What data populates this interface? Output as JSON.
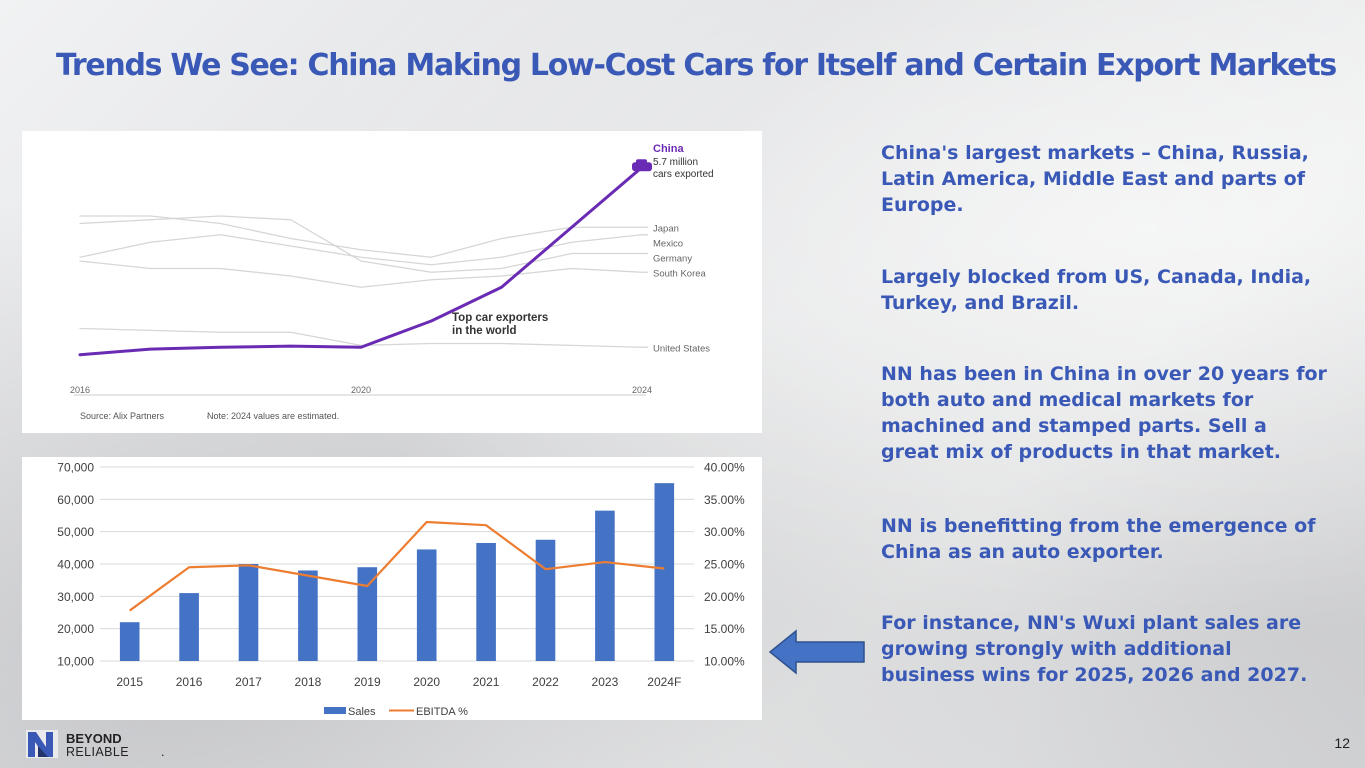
{
  "slide": {
    "title": "Trends We See: China Making Low-Cost Cars for Itself and Certain Export Markets",
    "page_number": "12",
    "logo": {
      "line1": "BEYOND",
      "line2": "RELIABLE",
      "mark": "N"
    },
    "bullets": [
      "China's largest markets – China, Russia, Latin America, Middle East and parts of Europe.",
      "Largely blocked from US, Canada, India, Turkey, and Brazil.",
      "NN has been in China in over 20 years for both auto and medical markets for machined and stamped parts. Sell a great mix of products in that market.",
      "NN is benefitting from the emergence of China as an auto exporter.",
      "For instance, NN's Wuxi plant sales are growing strongly with additional business wins for 2025, 2026 and 2027."
    ]
  },
  "chart_data": [
    {
      "type": "line",
      "title": "",
      "annotation": [
        "Top car exporters",
        "in the world"
      ],
      "highlight_label": {
        "name": "China",
        "value": "5.7 million",
        "unit": "cars exported"
      },
      "source": "Source: Alix Partners",
      "note": "Note: 2024 values are estimated.",
      "x": [
        2016,
        2017,
        2018,
        2019,
        2020,
        2021,
        2022,
        2023,
        2024
      ],
      "x_tick_labels": [
        "2016",
        "2020",
        "2024"
      ],
      "xlim": [
        2016,
        2024
      ],
      "ylim": [
        0,
        6
      ],
      "highlight_color": "#6a2bb4",
      "other_color": "#d6d6d6",
      "series": [
        {
          "name": "China",
          "values": [
            0.7,
            0.85,
            0.9,
            0.93,
            0.9,
            1.6,
            2.5,
            4.1,
            5.7
          ]
        },
        {
          "name": "Japan",
          "values": [
            4.4,
            4.4,
            4.2,
            3.8,
            3.5,
            3.3,
            3.8,
            4.1,
            4.1
          ]
        },
        {
          "name": "Mexico",
          "values": [
            3.3,
            3.7,
            3.9,
            3.6,
            3.3,
            3.1,
            3.3,
            3.7,
            3.9
          ]
        },
        {
          "name": "Germany",
          "values": [
            4.2,
            4.3,
            4.4,
            4.3,
            3.2,
            2.9,
            3.0,
            3.4,
            3.4
          ]
        },
        {
          "name": "South Korea",
          "values": [
            3.2,
            3.0,
            3.0,
            2.8,
            2.5,
            2.7,
            2.8,
            3.0,
            2.9
          ]
        },
        {
          "name": "United States",
          "values": [
            1.4,
            1.35,
            1.3,
            1.3,
            0.95,
            1.0,
            1.0,
            0.95,
            0.9
          ]
        }
      ]
    },
    {
      "type": "bar",
      "categories": [
        "2015",
        "2016",
        "2017",
        "2018",
        "2019",
        "2020",
        "2021",
        "2022",
        "2023",
        "2024F"
      ],
      "ylim": [
        10000,
        70000
      ],
      "y_tick_labels": [
        "10,000",
        "20,000",
        "30,000",
        "40,000",
        "50,000",
        "60,000",
        "70,000"
      ],
      "y2lim": [
        10,
        40
      ],
      "y2_tick_labels": [
        "10.00%",
        "15.00%",
        "20.00%",
        "25.00%",
        "30.00%",
        "35.00%",
        "40.00%"
      ],
      "grid": true,
      "legend": "bottom",
      "series": [
        {
          "name": "Sales",
          "type": "bar",
          "axis": "left",
          "color": "#4472c4",
          "values": [
            22000,
            31000,
            40000,
            38000,
            39000,
            44500,
            46500,
            47500,
            56500,
            65000
          ]
        },
        {
          "name": "EBITDA %",
          "type": "line",
          "axis": "right",
          "color": "#ed7d31",
          "values": [
            17.8,
            24.5,
            24.8,
            23.2,
            21.6,
            31.5,
            31.0,
            24.2,
            25.3,
            24.3
          ]
        }
      ]
    }
  ]
}
